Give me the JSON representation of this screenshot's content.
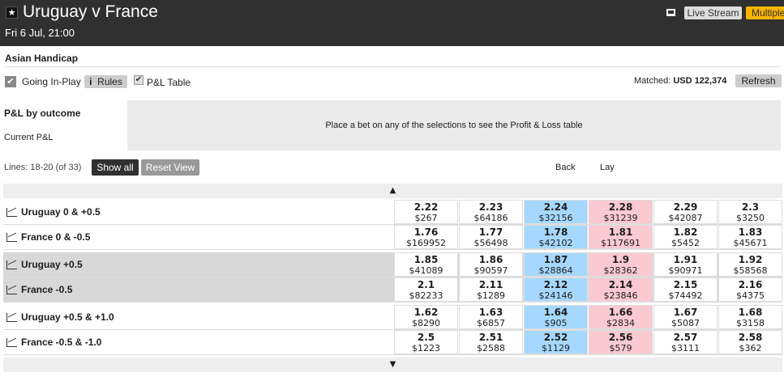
{
  "header": {
    "title": "Uruguay v France",
    "date": "Fri 6 Jul, 21:00",
    "live_stream": "Live Stream",
    "multiples": "Multiples"
  },
  "market": {
    "name": "Asian Handicap",
    "going_in_play": "Going In-Play",
    "rules_icon": "i",
    "rules": "Rules",
    "pl_table": "P&L Table",
    "matched_label": "Matched:",
    "matched_value": "USD 122,374",
    "refresh": "Refresh"
  },
  "pl": {
    "title": "P&L by outcome",
    "current": "Current P&L",
    "message": "Place a bet on any of the selections to see the Profit & Loss table"
  },
  "lines": {
    "text": "Lines: 18-20 (of 33)",
    "show_all": "Show all",
    "reset_view": "Reset View",
    "back": "Back",
    "lay": "Lay",
    "up": "▲",
    "down": "▼"
  },
  "colors": {
    "back": "#a6d8ff",
    "lay": "#fac9d1",
    "header": "#303030",
    "multiples": "#f7b500"
  },
  "runners": [
    {
      "name": "Uruguay 0 & +0.5",
      "prices": [
        [
          "2.22",
          "$267"
        ],
        [
          "2.23",
          "$64186"
        ],
        [
          "2.24",
          "$32156"
        ],
        [
          "2.28",
          "$31239"
        ],
        [
          "2.29",
          "$42087"
        ],
        [
          "2.3",
          "$3250"
        ]
      ]
    },
    {
      "name": "France 0 & -0.5",
      "prices": [
        [
          "1.76",
          "$169952"
        ],
        [
          "1.77",
          "$56498"
        ],
        [
          "1.78",
          "$42102"
        ],
        [
          "1.81",
          "$117691"
        ],
        [
          "1.82",
          "$5452"
        ],
        [
          "1.83",
          "$45671"
        ]
      ]
    },
    {
      "name": "Uruguay +0.5",
      "prices": [
        [
          "1.85",
          "$41089"
        ],
        [
          "1.86",
          "$90597"
        ],
        [
          "1.87",
          "$28864"
        ],
        [
          "1.9",
          "$28362"
        ],
        [
          "1.91",
          "$90971"
        ],
        [
          "1.92",
          "$58568"
        ]
      ]
    },
    {
      "name": "France -0.5",
      "prices": [
        [
          "2.1",
          "$82233"
        ],
        [
          "2.11",
          "$1289"
        ],
        [
          "2.12",
          "$24146"
        ],
        [
          "2.14",
          "$23846"
        ],
        [
          "2.15",
          "$74492"
        ],
        [
          "2.16",
          "$4375"
        ]
      ]
    },
    {
      "name": "Uruguay +0.5 & +1.0",
      "prices": [
        [
          "1.62",
          "$8290"
        ],
        [
          "1.63",
          "$6857"
        ],
        [
          "1.64",
          "$905"
        ],
        [
          "1.66",
          "$2834"
        ],
        [
          "1.67",
          "$5087"
        ],
        [
          "1.68",
          "$3158"
        ]
      ]
    },
    {
      "name": "France -0.5 & -1.0",
      "prices": [
        [
          "2.5",
          "$1223"
        ],
        [
          "2.51",
          "$2588"
        ],
        [
          "2.52",
          "$1129"
        ],
        [
          "2.56",
          "$579"
        ],
        [
          "2.57",
          "$3111"
        ],
        [
          "2.58",
          "$362"
        ]
      ]
    }
  ]
}
